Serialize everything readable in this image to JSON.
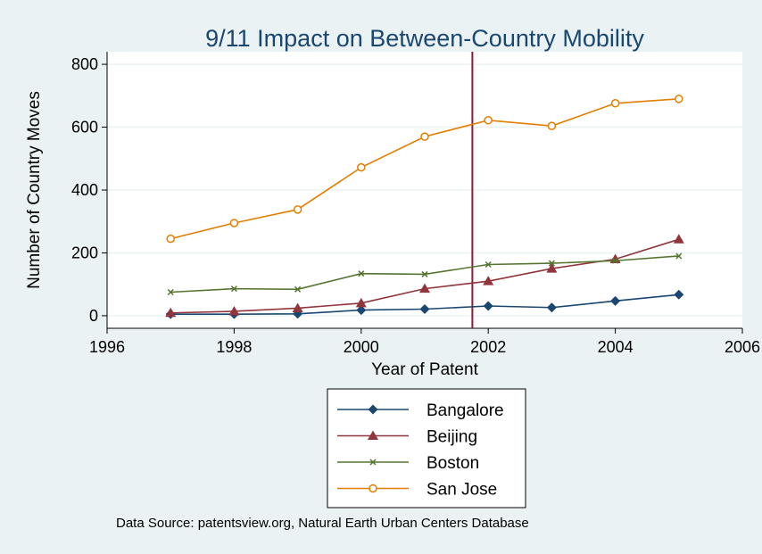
{
  "chart_data": {
    "type": "line",
    "title": "9/11 Impact on Between-Country Mobility",
    "xlabel": "Year of Patent",
    "ylabel": "Number of Country Moves",
    "xlim": [
      1996,
      2006
    ],
    "ylim": [
      -40,
      840
    ],
    "xticks": [
      1996,
      1998,
      2000,
      2002,
      2004,
      2006
    ],
    "yticks": [
      0,
      200,
      400,
      600,
      800
    ],
    "grid": "horizontal",
    "reference_line_x": 2001.75,
    "reference_line_color": "#8b1a3a",
    "legend_position": "bottom",
    "x": [
      1997,
      1998,
      1999,
      2000,
      2001,
      2002,
      2003,
      2004,
      2005
    ],
    "series": [
      {
        "name": "Bangalore",
        "color": "#1a476f",
        "marker": "diamond",
        "values": [
          5,
          5,
          6,
          18,
          21,
          31,
          26,
          47,
          67
        ]
      },
      {
        "name": "Beijing",
        "color": "#90353b",
        "marker": "triangle",
        "values": [
          9,
          14,
          24,
          40,
          86,
          110,
          150,
          180,
          243
        ]
      },
      {
        "name": "Boston",
        "color": "#55752f",
        "marker": "x",
        "values": [
          75,
          86,
          84,
          134,
          132,
          163,
          167,
          175,
          190
        ]
      },
      {
        "name": "San Jose",
        "color": "#e37e00",
        "marker": "circle",
        "values": [
          245,
          295,
          338,
          472,
          570,
          622,
          604,
          676,
          690
        ]
      }
    ],
    "note": "Data Source: patentsview.org, Natural Earth Urban Centers Database"
  }
}
